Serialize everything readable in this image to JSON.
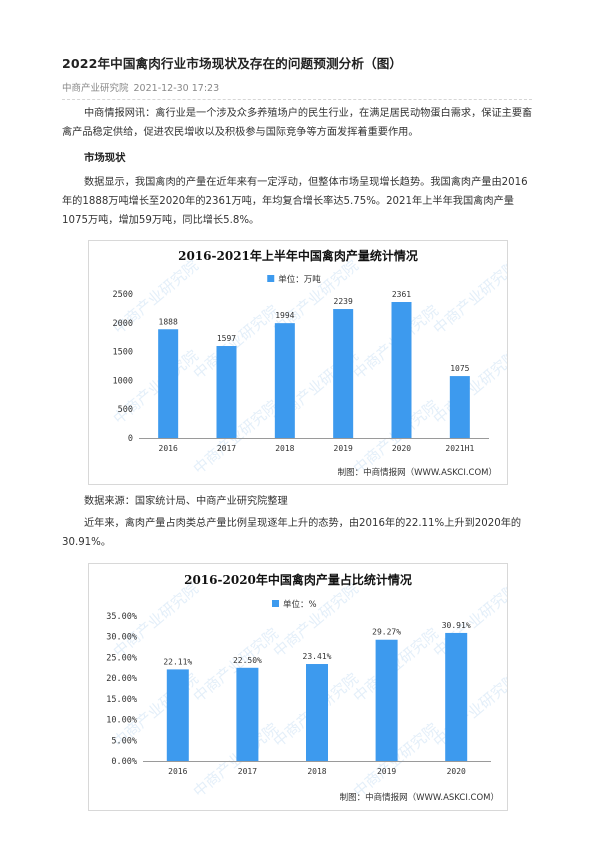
{
  "article": {
    "title": "2022年中国禽肉行业市场现状及存在的问题预测分析（图）",
    "source_name": "中商产业研究院",
    "date": "2021-12-30 17:23",
    "intro": "中商情报网讯：禽行业是一个涉及众多养殖场户的民生行业，在满足居民动物蛋白需求，保证主要畜禽产品稳定供给，促进农民增收以及积极参与国际竞争等方面发挥着重要作用。",
    "section_heading": "市场现状",
    "para_market": "数据显示，我国禽肉的产量在近年来有一定浮动，但整体市场呈现增长趋势。我国禽肉产量由2016年的1888万吨增长至2020年的2361万吨，年均复合增长率达5.75%。2021年上半年我国禽肉产量1075万吨，增加59万吨，同比增长5.8%。",
    "data_source": "数据来源：国家统计局、中商产业研究院整理",
    "para_share": "近年来，禽肉产量占肉类总产量比例呈现逐年上升的态势，由2016年的22.11%上升到2020年的30.91%。"
  },
  "chart_data": [
    {
      "type": "bar",
      "title": "2016-2021年上半年中国禽肉产量统计情况",
      "legend": "单位：万吨",
      "legend_position": "top",
      "categories": [
        "2016",
        "2017",
        "2018",
        "2019",
        "2020",
        "2021H1"
      ],
      "values": [
        1888,
        1597,
        1994,
        2239,
        2361,
        1075
      ],
      "value_labels": [
        "1888",
        "1597",
        "1994",
        "2239",
        "2361",
        "1075"
      ],
      "ylim": [
        0,
        2500
      ],
      "yticks": [
        "0",
        "500",
        "1000",
        "1500",
        "2000",
        "2500"
      ],
      "grid": false,
      "bar_color": "#3d9aee",
      "credit": "制图：中商情报网（WWW.ASKCI.COM）",
      "watermark": "中商产业研究院"
    },
    {
      "type": "bar",
      "title": "2016-2020年中国禽肉产量占比统计情况",
      "legend": "单位：%",
      "legend_position": "top",
      "categories": [
        "2016",
        "2017",
        "2018",
        "2019",
        "2020"
      ],
      "values": [
        22.11,
        22.5,
        23.41,
        29.27,
        30.91
      ],
      "value_labels": [
        "22.11%",
        "22.50%",
        "23.41%",
        "29.27%",
        "30.91%"
      ],
      "ylim": [
        0,
        35
      ],
      "yticks": [
        "0.00%",
        "5.00%",
        "10.00%",
        "15.00%",
        "20.00%",
        "25.00%",
        "30.00%",
        "35.00%"
      ],
      "grid": false,
      "bar_color": "#3d9aee",
      "credit": "制图：中商情报网（WWW.ASKCI.COM）",
      "watermark": "中商产业研究院"
    }
  ]
}
